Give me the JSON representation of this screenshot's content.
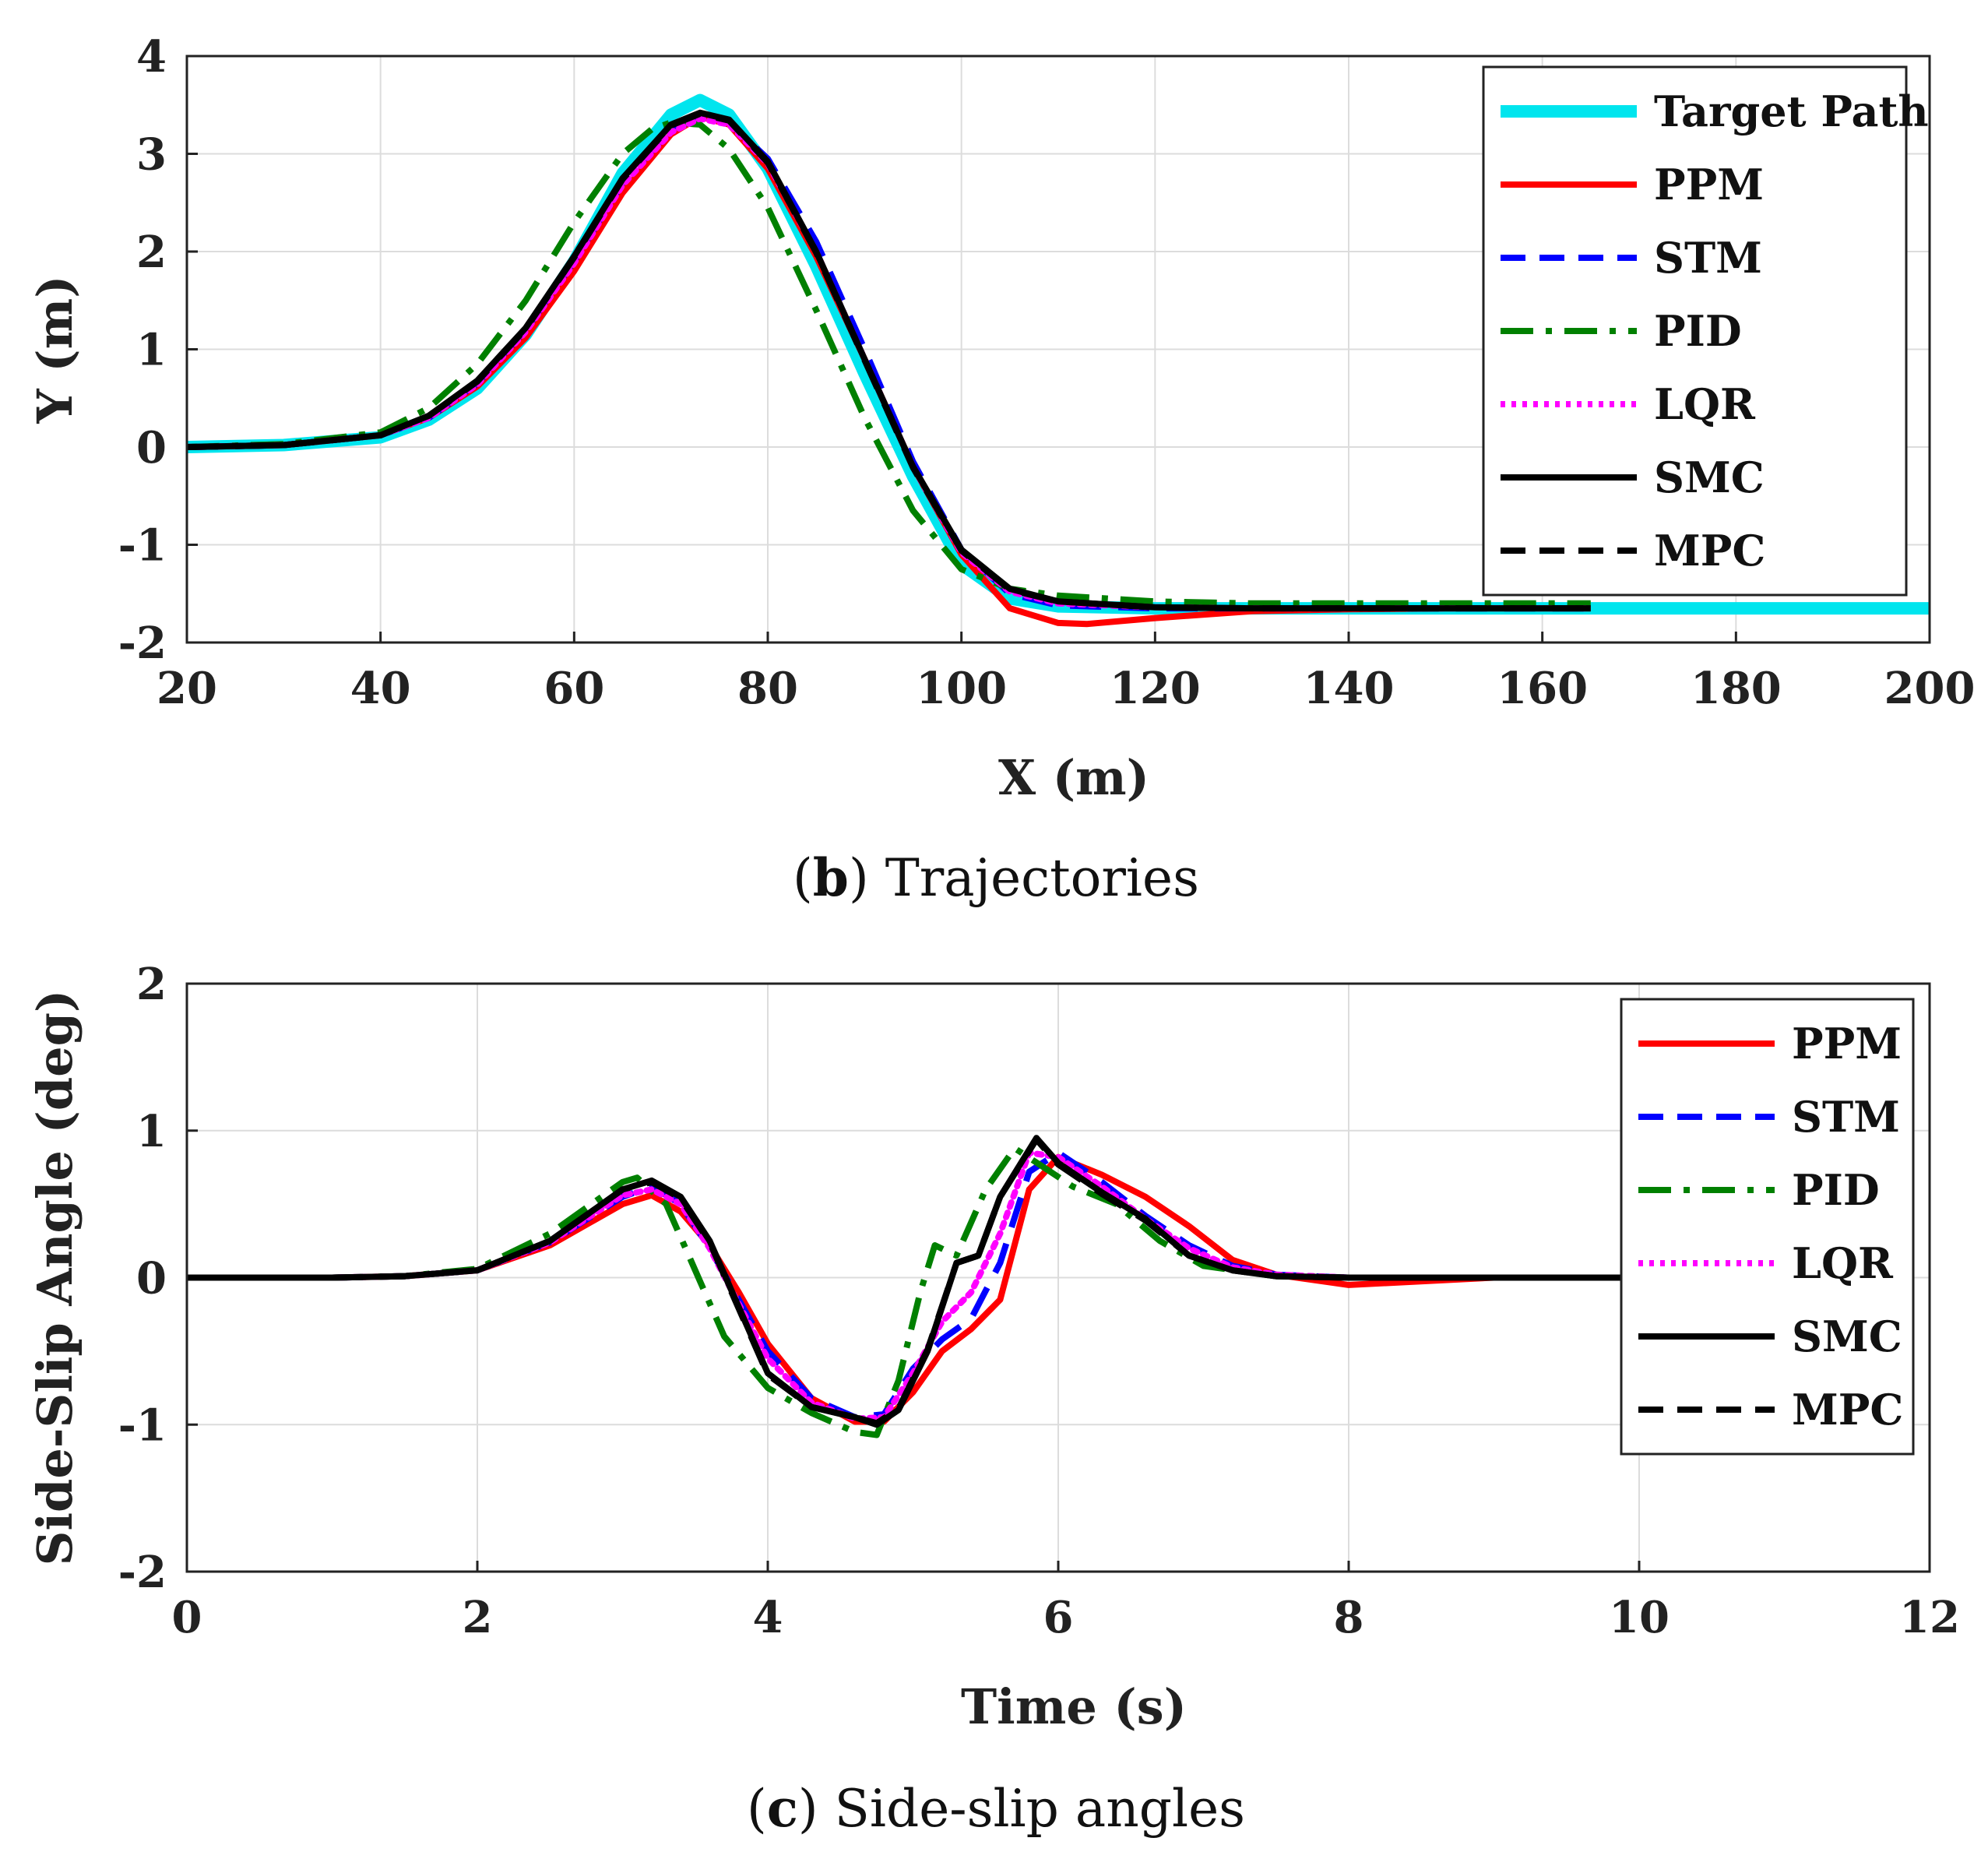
{
  "chart_data": [
    {
      "type": "line",
      "panel": "trajectories",
      "caption_letter": "b",
      "caption_text": "Trajectories",
      "xlabel": "X (m)",
      "ylabel": "Y (m)",
      "xlim": [
        20,
        200
      ],
      "ylim": [
        -2,
        4
      ],
      "xticks": [
        20,
        40,
        60,
        80,
        100,
        120,
        140,
        160,
        180,
        200
      ],
      "yticks": [
        4,
        3,
        2,
        1,
        0,
        -1,
        -2
      ],
      "grid": true,
      "legend_position": "top-right",
      "series": [
        {
          "name": "Target Path",
          "color": "#00e5ee",
          "style": "solid",
          "x": [
            20,
            30,
            40,
            45,
            50,
            55,
            60,
            65,
            70,
            73,
            76,
            80,
            85,
            90,
            95,
            100,
            105,
            110,
            120,
            130,
            150,
            170,
            200
          ],
          "y": [
            0,
            0.02,
            0.1,
            0.28,
            0.6,
            1.15,
            1.9,
            2.8,
            3.4,
            3.55,
            3.4,
            2.85,
            1.85,
            0.75,
            -0.3,
            -1.2,
            -1.55,
            -1.63,
            -1.65,
            -1.65,
            -1.65,
            -1.65,
            -1.65
          ]
        },
        {
          "name": "PPM",
          "color": "#ff0000",
          "style": "solid",
          "x": [
            20,
            30,
            40,
            45,
            50,
            55,
            60,
            65,
            70,
            73,
            76,
            80,
            85,
            90,
            95,
            100,
            105,
            110,
            113,
            120,
            130,
            140,
            150,
            165
          ],
          "y": [
            0,
            0.02,
            0.12,
            0.3,
            0.62,
            1.12,
            1.8,
            2.6,
            3.2,
            3.38,
            3.3,
            2.85,
            1.95,
            0.9,
            -0.2,
            -1.1,
            -1.65,
            -1.8,
            -1.81,
            -1.75,
            -1.68,
            -1.66,
            -1.65,
            -1.65
          ]
        },
        {
          "name": "STM",
          "color": "#0000ff",
          "style": "dashed",
          "x": [
            20,
            30,
            40,
            45,
            50,
            55,
            60,
            65,
            70,
            73,
            76,
            80,
            85,
            90,
            95,
            100,
            105,
            110,
            120,
            130,
            150,
            165
          ],
          "y": [
            0,
            0.02,
            0.12,
            0.3,
            0.65,
            1.2,
            1.9,
            2.7,
            3.25,
            3.38,
            3.32,
            2.95,
            2.1,
            1.0,
            -0.15,
            -1.05,
            -1.5,
            -1.62,
            -1.65,
            -1.65,
            -1.65,
            -1.65
          ]
        },
        {
          "name": "PID",
          "color": "#008000",
          "style": "dashdot",
          "x": [
            20,
            30,
            40,
            45,
            50,
            55,
            60,
            65,
            68,
            70,
            73,
            76,
            80,
            85,
            90,
            95,
            100,
            105,
            110,
            120,
            130,
            150,
            165
          ],
          "y": [
            0,
            0.03,
            0.15,
            0.4,
            0.85,
            1.5,
            2.3,
            3.0,
            3.25,
            3.32,
            3.3,
            3.05,
            2.45,
            1.4,
            0.3,
            -0.65,
            -1.25,
            -1.45,
            -1.52,
            -1.58,
            -1.6,
            -1.6,
            -1.6
          ]
        },
        {
          "name": "LQR",
          "color": "#ff00ff",
          "style": "dotted",
          "x": [
            20,
            30,
            40,
            45,
            50,
            55,
            60,
            65,
            70,
            73,
            76,
            80,
            85,
            90,
            95,
            100,
            105,
            110,
            120,
            130,
            150,
            165
          ],
          "y": [
            0,
            0.02,
            0.12,
            0.3,
            0.64,
            1.18,
            1.88,
            2.68,
            3.22,
            3.36,
            3.3,
            2.9,
            2.0,
            0.9,
            -0.2,
            -1.08,
            -1.48,
            -1.6,
            -1.64,
            -1.65,
            -1.65,
            -1.65
          ]
        },
        {
          "name": "SMC",
          "color": "#000000",
          "style": "solid",
          "x": [
            20,
            30,
            40,
            45,
            50,
            55,
            60,
            65,
            70,
            73,
            76,
            80,
            85,
            90,
            95,
            100,
            105,
            110,
            120,
            130,
            150,
            165
          ],
          "y": [
            0,
            0.02,
            0.12,
            0.32,
            0.68,
            1.22,
            1.95,
            2.75,
            3.3,
            3.42,
            3.35,
            2.92,
            2.0,
            0.9,
            -0.2,
            -1.05,
            -1.45,
            -1.58,
            -1.64,
            -1.65,
            -1.65,
            -1.65
          ]
        },
        {
          "name": "MPC",
          "color": "#000000",
          "style": "dashed",
          "x": [
            20,
            30,
            40,
            45,
            50,
            55,
            60,
            65,
            70,
            73,
            76,
            80,
            85,
            90,
            95,
            100,
            105,
            110,
            120,
            130,
            150,
            165
          ],
          "y": [
            0,
            0.02,
            0.12,
            0.32,
            0.67,
            1.21,
            1.94,
            2.74,
            3.29,
            3.41,
            3.34,
            2.91,
            1.99,
            0.89,
            -0.21,
            -1.06,
            -1.46,
            -1.58,
            -1.64,
            -1.65,
            -1.65,
            -1.65
          ]
        }
      ]
    },
    {
      "type": "line",
      "panel": "side-slip",
      "caption_letter": "c",
      "caption_text": "Side-slip angles",
      "xlabel": "Time (s)",
      "ylabel": "Side-Slip Angle (deg)",
      "xlim": [
        0,
        12
      ],
      "ylim": [
        -2,
        2
      ],
      "xticks": [
        0,
        2,
        4,
        6,
        8,
        10,
        12
      ],
      "yticks": [
        2,
        1,
        0,
        -1,
        -2
      ],
      "grid": true,
      "legend_position": "top-right",
      "series": [
        {
          "name": "PPM",
          "color": "#ff0000",
          "style": "solid",
          "x": [
            0,
            1,
            1.5,
            2,
            2.5,
            3,
            3.2,
            3.4,
            3.6,
            3.8,
            4,
            4.3,
            4.6,
            4.8,
            5,
            5.2,
            5.4,
            5.6,
            5.8,
            6,
            6.3,
            6.6,
            6.9,
            7.2,
            7.5,
            8,
            9,
            10
          ],
          "y": [
            0,
            0,
            0.01,
            0.05,
            0.22,
            0.5,
            0.56,
            0.45,
            0.22,
            -0.1,
            -0.45,
            -0.82,
            -0.98,
            -0.98,
            -0.78,
            -0.5,
            -0.35,
            -0.15,
            0.6,
            0.82,
            0.7,
            0.55,
            0.35,
            0.12,
            0.02,
            -0.05,
            0,
            0
          ]
        },
        {
          "name": "STM",
          "color": "#0000ff",
          "style": "dashed",
          "x": [
            0,
            1,
            1.5,
            2,
            2.5,
            3,
            3.2,
            3.4,
            3.6,
            3.8,
            4,
            4.3,
            4.6,
            4.8,
            5,
            5.2,
            5.4,
            5.6,
            5.8,
            6,
            6.3,
            6.6,
            6.9,
            7.2,
            7.5,
            8,
            9,
            10
          ],
          "y": [
            0,
            0,
            0.01,
            0.05,
            0.24,
            0.55,
            0.62,
            0.5,
            0.2,
            -0.15,
            -0.5,
            -0.82,
            -0.95,
            -0.93,
            -0.62,
            -0.42,
            -0.28,
            0.1,
            0.72,
            0.85,
            0.65,
            0.42,
            0.22,
            0.08,
            0.02,
            0,
            0,
            0
          ]
        },
        {
          "name": "PID",
          "color": "#008000",
          "style": "dashdot",
          "x": [
            0,
            1,
            1.5,
            2,
            2.5,
            3,
            3.1,
            3.3,
            3.5,
            3.7,
            4,
            4.3,
            4.6,
            4.75,
            4.9,
            5.05,
            5.15,
            5.3,
            5.5,
            5.7,
            5.9,
            6.1,
            6.4,
            6.7,
            7,
            7.5,
            8,
            10
          ],
          "y": [
            0,
            0,
            0.01,
            0.06,
            0.3,
            0.65,
            0.68,
            0.5,
            0.05,
            -0.4,
            -0.75,
            -0.92,
            -1.05,
            -1.07,
            -0.7,
            -0.1,
            0.22,
            0.15,
            0.6,
            0.88,
            0.75,
            0.62,
            0.5,
            0.25,
            0.08,
            0.01,
            0,
            0
          ]
        },
        {
          "name": "LQR",
          "color": "#ff00ff",
          "style": "dotted",
          "x": [
            0,
            1,
            1.5,
            2,
            2.5,
            3,
            3.2,
            3.4,
            3.6,
            3.8,
            4,
            4.3,
            4.6,
            4.8,
            5,
            5.2,
            5.4,
            5.6,
            5.8,
            6,
            6.3,
            6.6,
            6.9,
            7.2,
            7.5,
            8,
            9,
            10
          ],
          "y": [
            0,
            0,
            0.01,
            0.05,
            0.24,
            0.56,
            0.6,
            0.5,
            0.2,
            -0.18,
            -0.55,
            -0.85,
            -0.96,
            -0.95,
            -0.65,
            -0.3,
            -0.1,
            0.3,
            0.85,
            0.82,
            0.62,
            0.4,
            0.2,
            0.07,
            0.02,
            0,
            0,
            0
          ]
        },
        {
          "name": "SMC",
          "color": "#000000",
          "style": "solid",
          "x": [
            0,
            1,
            1.5,
            2,
            2.5,
            3,
            3.2,
            3.4,
            3.6,
            3.8,
            4,
            4.3,
            4.6,
            4.75,
            4.9,
            5.1,
            5.3,
            5.45,
            5.6,
            5.85,
            6,
            6.3,
            6.6,
            6.9,
            7.2,
            7.5,
            8,
            10
          ],
          "y": [
            0,
            0,
            0.01,
            0.05,
            0.25,
            0.6,
            0.66,
            0.55,
            0.25,
            -0.2,
            -0.65,
            -0.88,
            -0.95,
            -1.0,
            -0.9,
            -0.5,
            0.1,
            0.15,
            0.55,
            0.95,
            0.78,
            0.58,
            0.4,
            0.15,
            0.05,
            0.01,
            0,
            0
          ]
        },
        {
          "name": "MPC",
          "color": "#000000",
          "style": "dashed",
          "x": [
            0,
            1,
            1.5,
            2,
            2.5,
            3,
            3.2,
            3.4,
            3.6,
            3.8,
            4,
            4.3,
            4.6,
            4.75,
            4.9,
            5.1,
            5.3,
            5.45,
            5.6,
            5.85,
            6,
            6.3,
            6.6,
            6.9,
            7.2,
            7.5,
            8,
            10
          ],
          "y": [
            0,
            0,
            0.01,
            0.05,
            0.25,
            0.6,
            0.65,
            0.54,
            0.24,
            -0.21,
            -0.66,
            -0.88,
            -0.95,
            -0.99,
            -0.89,
            -0.49,
            0.1,
            0.15,
            0.55,
            0.94,
            0.77,
            0.57,
            0.39,
            0.15,
            0.05,
            0.01,
            0,
            0
          ]
        }
      ]
    }
  ]
}
